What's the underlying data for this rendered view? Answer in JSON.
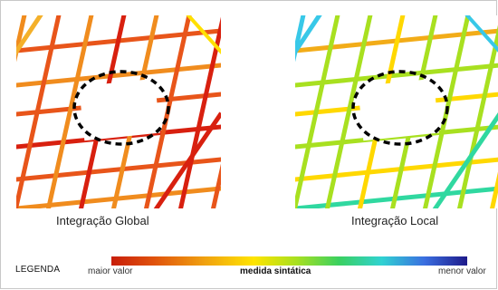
{
  "maps": {
    "global": {
      "caption": "Integração Global",
      "colors": {
        "street_primary": "#e8551a",
        "street_secondary": "#f08c1e",
        "street_highlight": "#d8200f",
        "street_light": "#f4b02a",
        "street_edge": "#ffe000"
      }
    },
    "local": {
      "caption": "Integração Local",
      "colors": {
        "street_primary": "#ffd800",
        "street_secondary": "#a8e020",
        "street_highlight": "#30d8a0",
        "street_light": "#f2ac18",
        "street_edge": "#38c8e8"
      }
    },
    "highlight_marker": "dashed-ellipse"
  },
  "legend": {
    "title": "LEGENDA",
    "max_label": "maior valor",
    "mid_label": "medida sintática",
    "min_label": "menor valor",
    "gradient_colors": [
      "#c81e0a",
      "#e0520c",
      "#f0a010",
      "#ffe400",
      "#a8e020",
      "#3ad060",
      "#30d2d2",
      "#3a6ee0",
      "#1e1a8a"
    ]
  }
}
